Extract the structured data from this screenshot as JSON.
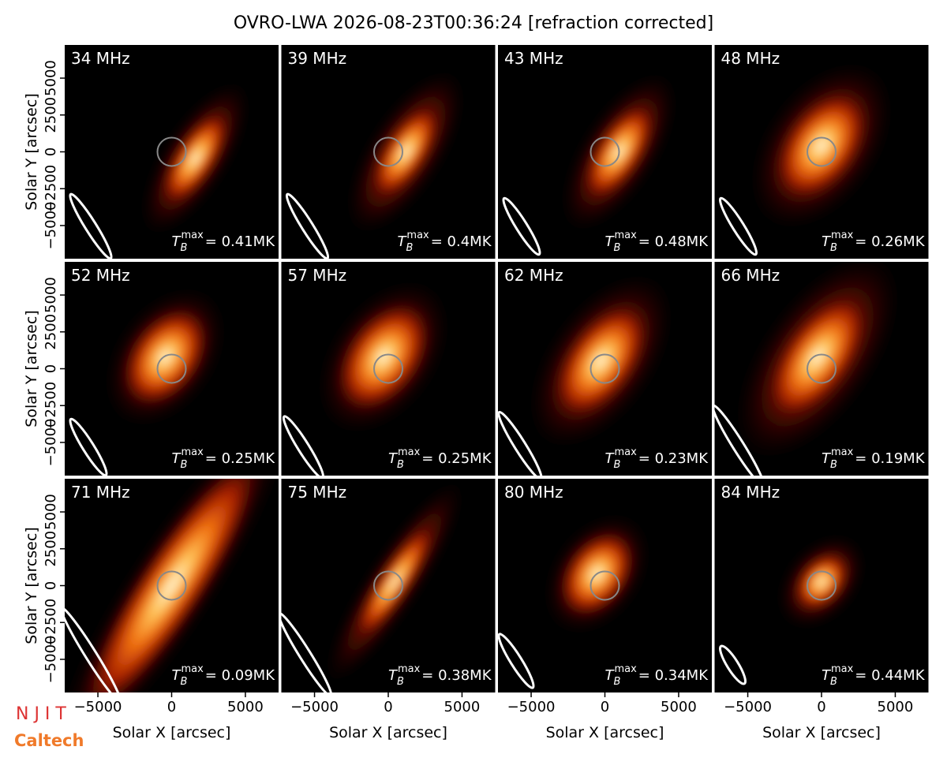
{
  "chart_data": {
    "type": "image-grid",
    "title": "OVRO-LWA 2026-08-23T00:36:24 [refraction corrected]",
    "xlabel": "Solar X [arcsec]",
    "ylabel": "Solar Y [arcsec]",
    "xlim": [
      -7250,
      7250
    ],
    "ylim": [
      -7250,
      7250
    ],
    "xticks": [
      {
        "value": -5000,
        "label": "−5000"
      },
      0,
      5000
    ],
    "yticks": [
      {
        "value": -5000,
        "label": "−5000"
      },
      {
        "value": -2500,
        "label": "−2500"
      },
      0,
      2500,
      5000
    ],
    "tmax_symbol": {
      "base": "T",
      "sub": "B",
      "sup": "max"
    },
    "panels": [
      {
        "label": "34 MHz",
        "annotation": "= 0.41MK"
      },
      {
        "label": "39 MHz",
        "annotation": "= 0.4MK"
      },
      {
        "label": "43 MHz",
        "annotation": "= 0.48MK"
      },
      {
        "label": "48 MHz",
        "annotation": "= 0.26MK"
      },
      {
        "label": "52 MHz",
        "annotation": "= 0.25MK"
      },
      {
        "label": "57 MHz",
        "annotation": "= 0.25MK"
      },
      {
        "label": "62 MHz",
        "annotation": "= 0.23MK"
      },
      {
        "label": "66 MHz",
        "annotation": "= 0.19MK"
      },
      {
        "label": "71 MHz",
        "annotation": "= 0.09MK"
      },
      {
        "label": "75 MHz",
        "annotation": "= 0.38MK"
      },
      {
        "label": "80 MHz",
        "annotation": "= 0.34MK"
      },
      {
        "label": "84 MHz",
        "annotation": "= 0.44MK"
      }
    ],
    "logos": [
      "N J I T",
      "Caltech"
    ]
  }
}
